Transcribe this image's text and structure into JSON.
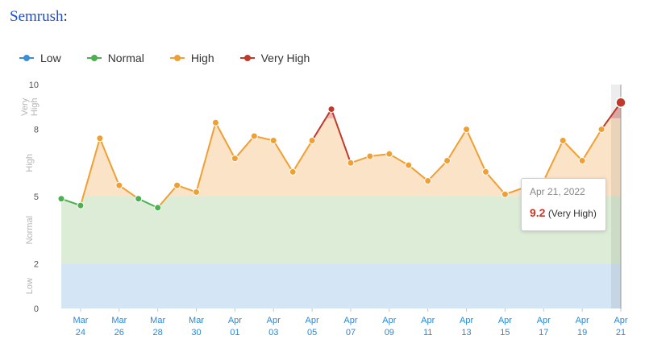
{
  "header": {
    "link_text": "Semrush",
    "suffix": ":"
  },
  "legend": [
    {
      "label": "Low",
      "color": "#3a8fd6"
    },
    {
      "label": "Normal",
      "color": "#4caf50"
    },
    {
      "label": "High",
      "color": "#f0a032"
    },
    {
      "label": "Very High",
      "color": "#c0392b"
    }
  ],
  "tooltip": {
    "date": "Apr 21, 2022",
    "value": "9.2",
    "level": "(Very High)"
  },
  "chart_data": {
    "type": "line",
    "ylim": [
      0,
      10
    ],
    "yticks": [
      0,
      2,
      5,
      8,
      10
    ],
    "bands": [
      {
        "label": "Low",
        "from": 0,
        "to": 2,
        "fill": "#d4e6f5"
      },
      {
        "label": "Normal",
        "from": 2,
        "to": 5,
        "fill": "#dcecd6"
      },
      {
        "label": "High",
        "from": 5,
        "to": 8.5,
        "fill": "#fbe3c8"
      },
      {
        "label": "Very High",
        "from": 8.5,
        "to": 10,
        "fill": "#ffffff"
      }
    ],
    "x_ticks": [
      {
        "month": "Mar",
        "day": "24",
        "i": 1
      },
      {
        "month": "Mar",
        "day": "26",
        "i": 3
      },
      {
        "month": "Mar",
        "day": "28",
        "i": 5
      },
      {
        "month": "Mar",
        "day": "30",
        "i": 7
      },
      {
        "month": "Apr",
        "day": "01",
        "i": 9
      },
      {
        "month": "Apr",
        "day": "03",
        "i": 11
      },
      {
        "month": "Apr",
        "day": "05",
        "i": 13
      },
      {
        "month": "Apr",
        "day": "07",
        "i": 15
      },
      {
        "month": "Apr",
        "day": "09",
        "i": 17
      },
      {
        "month": "Apr",
        "day": "11",
        "i": 19
      },
      {
        "month": "Apr",
        "day": "13",
        "i": 21
      },
      {
        "month": "Apr",
        "day": "15",
        "i": 23
      },
      {
        "month": "Apr",
        "day": "17",
        "i": 25
      },
      {
        "month": "Apr",
        "day": "19",
        "i": 27
      },
      {
        "month": "Apr",
        "day": "21",
        "i": 29
      }
    ],
    "values": [
      4.9,
      4.6,
      7.6,
      5.5,
      4.9,
      4.5,
      5.5,
      5.2,
      8.3,
      6.7,
      7.7,
      7.5,
      6.1,
      7.5,
      8.9,
      6.5,
      6.8,
      6.9,
      6.4,
      5.7,
      6.6,
      8.0,
      6.1,
      5.1,
      5.4,
      5.7,
      7.5,
      6.6,
      8.0,
      9.2
    ]
  }
}
